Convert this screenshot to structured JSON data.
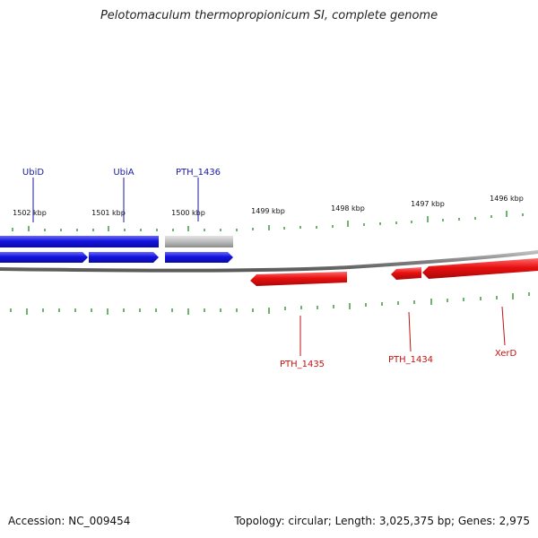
{
  "title": "Pelotomaculum thermopropionicum SI, complete genome",
  "footer": {
    "accession": "Accession: NC_009454",
    "summary": "Topology: circular; Length: 3,025,375 bp; Genes: 2,975"
  },
  "ruler": {
    "labels": [
      "1502 kbp",
      "1501 kbp",
      "1500 kbp",
      "1499 kbp",
      "1498 kbp",
      "1497 kbp",
      "1496 kbp"
    ]
  },
  "genes": {
    "top": [
      "UbiD",
      "UbiA",
      "PTH_1436"
    ],
    "bottom": [
      "PTH_1435",
      "PTH_1434",
      "XerD"
    ]
  },
  "colors": {
    "forward": "#1a1ae0",
    "reverse": "#e01010",
    "other": "#b8b8b8",
    "ticks": "#1f8a1f",
    "backbone": "#808080"
  }
}
